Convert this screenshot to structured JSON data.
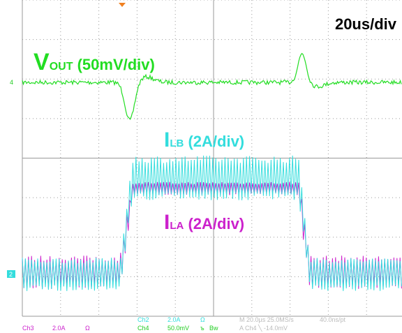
{
  "timebase": "20us/div",
  "traces": [
    {
      "main": "V",
      "sub": "OUT",
      "scale": " (50mV/div)"
    },
    {
      "main": "I",
      "sub": "LB",
      "scale": " (2A/div)"
    },
    {
      "main": "I",
      "sub": "LA",
      "scale": " (2A/div)"
    }
  ],
  "markers": [
    "4",
    "2"
  ],
  "status": {
    "ch2": [
      "Ch2",
      "2.0A",
      "Ω"
    ],
    "ch4": [
      "Ch4",
      "50.0mV",
      "ъ",
      "Bw"
    ],
    "ch3": [
      "Ch3",
      "2.0A",
      "Ω"
    ],
    "horizontal": "M 20.0µs 25.0MS/s",
    "resolution": "40.0ns/pt",
    "trigger": "A  Ch4  ╲  -14.0mV"
  }
}
